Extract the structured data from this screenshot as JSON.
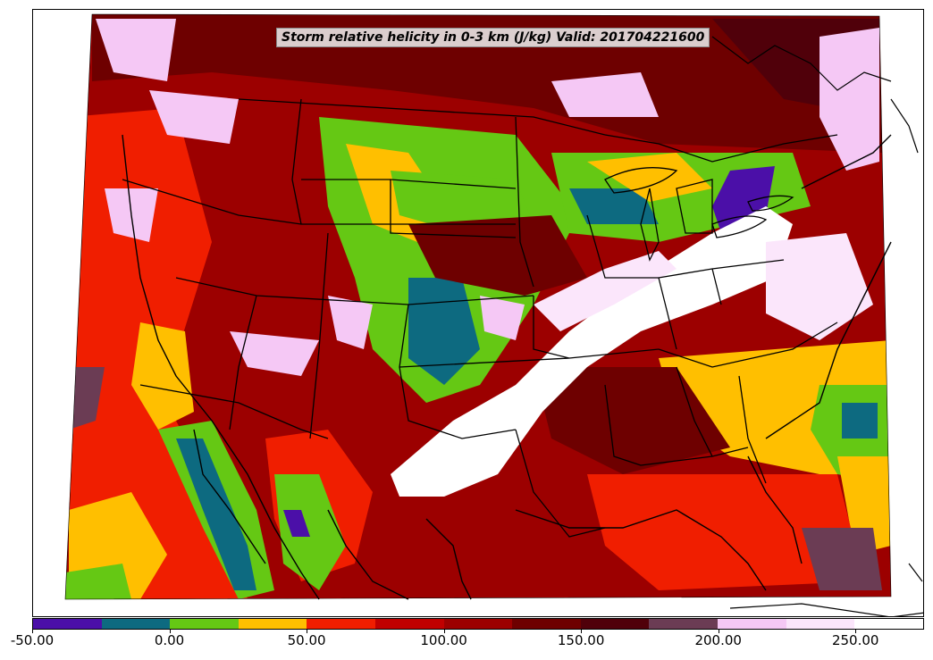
{
  "title": "Storm relative helicity in 0-3 km (J/kg) Valid: 201704221600",
  "colorbar": {
    "colors": [
      "#4b0fa8",
      "#0d6a80",
      "#65c814",
      "#ffbf00",
      "#f01e00",
      "#c00000",
      "#9c0000",
      "#6e0000",
      "#50000a",
      "#6b3c54",
      "#f5c8f5",
      "#fbe6fb",
      "#ffffff"
    ],
    "min": -50,
    "max": 275,
    "step": 25
  },
  "tick_labels": [
    "-50.00",
    "0.00",
    "50.00",
    "100.00",
    "150.00",
    "200.00",
    "250.00"
  ],
  "tick_values": [
    -50,
    0,
    50,
    100,
    150,
    200,
    250
  ]
}
